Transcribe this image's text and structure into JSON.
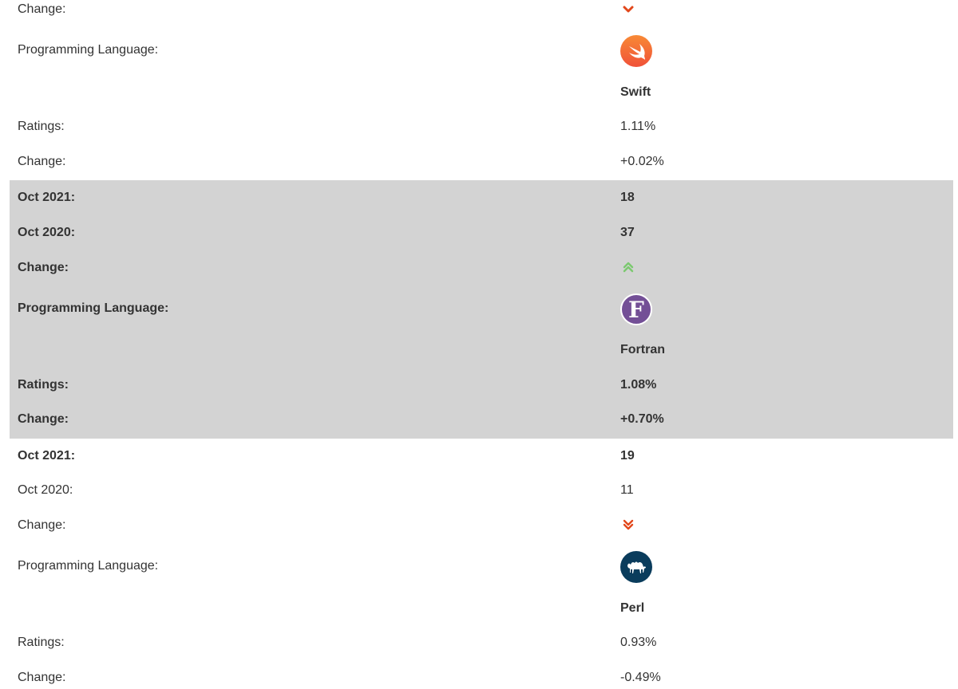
{
  "top": {
    "change_label": "Change:",
    "change_icon": "chevron-down-icon",
    "language_label": "Programming Language:",
    "language_icon": "swift-logo-icon",
    "language_name": "Swift",
    "ratings_label": "Ratings:",
    "ratings_value": "1.11%",
    "change2_label": "Change:",
    "change2_value": "+0.02%"
  },
  "fortran": {
    "oct2021_label": "Oct 2021:",
    "oct2021_value": "18",
    "oct2020_label": "Oct 2020:",
    "oct2020_value": "37",
    "change_label": "Change:",
    "change_icon": "double-chevron-up-icon",
    "language_label": "Programming Language:",
    "language_icon": "fortran-logo-icon",
    "language_name": "Fortran",
    "logo_letter": "F",
    "ratings_label": "Ratings:",
    "ratings_value": "1.08%",
    "change2_label": "Change:",
    "change2_value": "+0.70%"
  },
  "perl": {
    "oct2021_label": "Oct 2021:",
    "oct2021_value": "19",
    "oct2020_label": "Oct 2020:",
    "oct2020_value": "11",
    "change_label": "Change:",
    "change_icon": "double-chevron-down-icon",
    "language_label": "Programming Language:",
    "language_icon": "perl-camel-logo-icon",
    "language_name": "Perl",
    "ratings_label": "Ratings:",
    "ratings_value": "0.93%",
    "change2_label": "Change:",
    "change2_value": "-0.49%"
  },
  "colors": {
    "highlight_row": "#d3d3d3",
    "down_arrow": "#e2481c",
    "up_arrow": "#7bc96f",
    "swift_logo": "#f05138",
    "fortran_logo": "#734f96",
    "perl_logo": "#0a3c5c"
  }
}
